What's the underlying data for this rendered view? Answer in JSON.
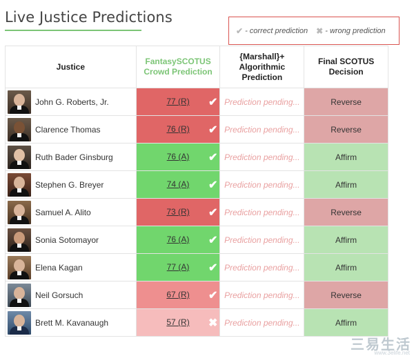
{
  "header": {
    "title": "Live Justice Predictions"
  },
  "legend": {
    "correct_symbol": "✔",
    "correct_label": "- correct prediction",
    "wrong_symbol": "✖",
    "wrong_label": "- wrong prediction"
  },
  "table": {
    "headers": {
      "justice": "Justice",
      "fantasy": "FantasySCOTUS Crowd Prediction",
      "marshall": "{Marshall}+ Algorithmic Prediction",
      "final": "Final SCOTUS Decision"
    },
    "rows": [
      {
        "name": "John G. Roberts, Jr.",
        "fantasy": "77 (R)",
        "mark": "✔",
        "marshall": "Prediction pending...",
        "final": "Reverse"
      },
      {
        "name": "Clarence Thomas",
        "fantasy": "76 (R)",
        "mark": "✔",
        "marshall": "Prediction pending...",
        "final": "Reverse"
      },
      {
        "name": "Ruth Bader Ginsburg",
        "fantasy": "76 (A)",
        "mark": "✔",
        "marshall": "Prediction pending...",
        "final": "Affirm"
      },
      {
        "name": "Stephen G. Breyer",
        "fantasy": "74 (A)",
        "mark": "✔",
        "marshall": "Prediction pending...",
        "final": "Affirm"
      },
      {
        "name": "Samuel A. Alito",
        "fantasy": "73 (R)",
        "mark": "✔",
        "marshall": "Prediction pending...",
        "final": "Reverse"
      },
      {
        "name": "Sonia Sotomayor",
        "fantasy": "76 (A)",
        "mark": "✔",
        "marshall": "Prediction pending...",
        "final": "Affirm"
      },
      {
        "name": "Elena Kagan",
        "fantasy": "77 (A)",
        "mark": "✔",
        "marshall": "Prediction pending...",
        "final": "Affirm"
      },
      {
        "name": "Neil Gorsuch",
        "fantasy": "67 (R)",
        "mark": "✔",
        "marshall": "Prediction pending...",
        "final": "Reverse"
      },
      {
        "name": "Brett M. Kavanaugh",
        "fantasy": "57 (R)",
        "mark": "✖",
        "marshall": "Prediction pending...",
        "final": "Affirm"
      }
    ]
  },
  "colors": {
    "accent_green": "#7cc576",
    "crowd_reverse_strong": "#e06666",
    "crowd_reverse_medium": "#ee8f8f",
    "crowd_reverse_weak": "#f6bcbc",
    "crowd_affirm": "#71d66d",
    "final_reverse": "#dea6a6",
    "final_affirm": "#b8e3b3",
    "legend_border": "#d9534f"
  },
  "watermark": {
    "text": "三易生活",
    "sub": "www.3elife.net"
  }
}
